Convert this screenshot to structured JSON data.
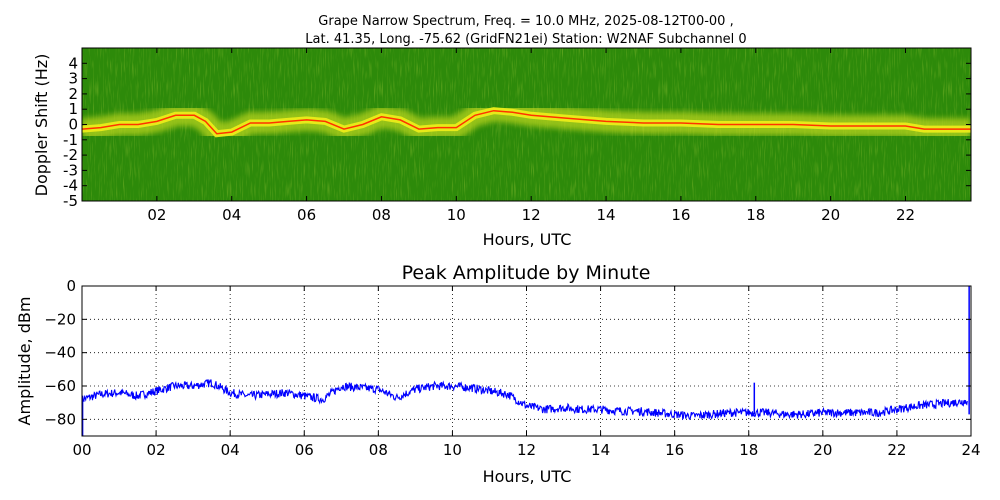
{
  "chart_data": [
    {
      "type": "heatmap",
      "title_line1": "Grape Narrow Spectrum, Freq. = 10.0 MHz, 2025-08-12T00-00 ,",
      "title_line2": "Lat.  41.35, Long. -75.62 (GridFN21ei) Station: W2NAF Subchannel 0",
      "xlabel": "Hours, UTC",
      "ylabel": "Doppler Shift (Hz)",
      "xlim": [
        0,
        23.75
      ],
      "ylim": [
        -5,
        5
      ],
      "xticks": [
        "02",
        "04",
        "06",
        "08",
        "10",
        "12",
        "14",
        "16",
        "18",
        "20",
        "22"
      ],
      "xtick_values": [
        2,
        4,
        6,
        8,
        10,
        12,
        14,
        16,
        18,
        20,
        22
      ],
      "yticks": [
        "4",
        "3",
        "2",
        "1",
        "0",
        "-1",
        "-2",
        "-3",
        "-4",
        "-5"
      ],
      "ytick_values": [
        4,
        3,
        2,
        1,
        0,
        -1,
        -2,
        -3,
        -4,
        -5
      ],
      "colors": {
        "background": "#2d8a0a",
        "mid": "#c8d81e",
        "peak": "#ff3300"
      },
      "doppler_trace": {
        "x": [
          0,
          0.5,
          1,
          1.5,
          2,
          2.5,
          3,
          3.3,
          3.6,
          4,
          4.5,
          5,
          5.5,
          6,
          6.5,
          7,
          7.5,
          8,
          8.5,
          9,
          9.5,
          10,
          10.5,
          11,
          11.5,
          12,
          13,
          14,
          15,
          16,
          17,
          18,
          19,
          20,
          21,
          22,
          22.5,
          23,
          23.75
        ],
        "y": [
          -0.3,
          -0.2,
          0,
          0,
          0.2,
          0.6,
          0.6,
          0.2,
          -0.6,
          -0.5,
          0.1,
          0.1,
          0.2,
          0.3,
          0.2,
          -0.3,
          0,
          0.5,
          0.3,
          -0.3,
          -0.2,
          -0.2,
          0.6,
          0.9,
          0.8,
          0.6,
          0.4,
          0.2,
          0.1,
          0.1,
          0,
          0,
          0,
          -0.1,
          -0.1,
          -0.1,
          -0.3,
          -0.3,
          -0.3
        ]
      }
    },
    {
      "type": "line",
      "title": "Peak Amplitude by Minute",
      "xlabel": "Hours, UTC",
      "ylabel": "Amplitude, dBm",
      "xlim": [
        0,
        24
      ],
      "ylim": [
        -90,
        0
      ],
      "xticks": [
        "00",
        "02",
        "04",
        "06",
        "08",
        "10",
        "12",
        "14",
        "16",
        "18",
        "20",
        "22",
        "24"
      ],
      "xtick_values": [
        0,
        2,
        4,
        6,
        8,
        10,
        12,
        14,
        16,
        18,
        20,
        22,
        24
      ],
      "yticks": [
        "0",
        "−20",
        "−40",
        "−60",
        "−80"
      ],
      "ytick_values": [
        0,
        -20,
        -40,
        -60,
        -80
      ],
      "grid": true,
      "line_color": "#0000ff",
      "series": [
        {
          "x": [
            0,
            0.5,
            1,
            1.5,
            2,
            2.5,
            3,
            3.5,
            4,
            4.5,
            5,
            5.5,
            6,
            6.5,
            7,
            7.5,
            8,
            8.5,
            9,
            9.5,
            10,
            10.5,
            11,
            11.5,
            12,
            12.5,
            13,
            13.5,
            14,
            14.5,
            15,
            15.5,
            16,
            16.5,
            17,
            17.5,
            18,
            18.5,
            19,
            19.5,
            20,
            20.5,
            21,
            21.5,
            22,
            22.5,
            23,
            23.5,
            23.9
          ],
          "values": [
            -68,
            -65,
            -64,
            -66,
            -63,
            -60,
            -60,
            -58,
            -64,
            -66,
            -65,
            -64,
            -66,
            -68,
            -60,
            -61,
            -62,
            -67,
            -62,
            -60,
            -60,
            -61,
            -63,
            -65,
            -72,
            -74,
            -73,
            -74,
            -74,
            -75,
            -75,
            -76,
            -77,
            -78,
            -77,
            -76,
            -76,
            -76,
            -77,
            -77,
            -76,
            -76,
            -76,
            -76,
            -74,
            -72,
            -71,
            -70,
            -69
          ]
        }
      ],
      "spikes": [
        {
          "x": 18.15,
          "value": -58
        },
        {
          "x": 23.95,
          "value": 0
        }
      ]
    }
  ]
}
